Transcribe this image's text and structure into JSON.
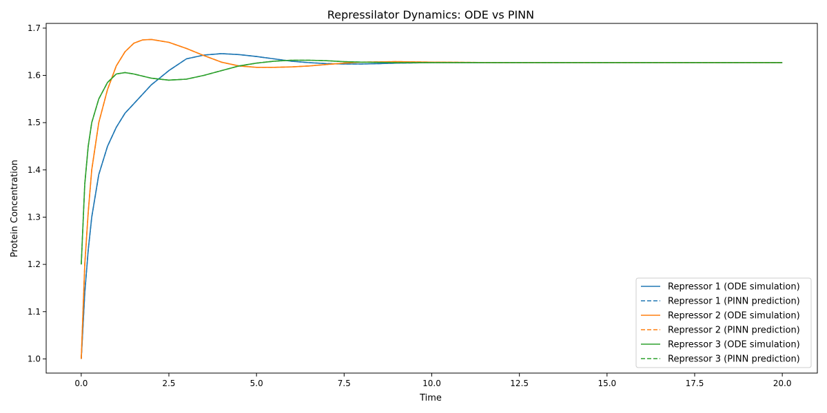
{
  "chart_data": {
    "type": "line",
    "title": "Repressilator Dynamics: ODE vs PINN",
    "xlabel": "Time",
    "ylabel": "Protein Concentration",
    "xlim": [
      -1.0,
      21.0
    ],
    "ylim": [
      0.97,
      1.71
    ],
    "xticks": [
      0.0,
      2.5,
      5.0,
      7.5,
      10.0,
      12.5,
      15.0,
      17.5,
      20.0
    ],
    "xtick_labels": [
      "0.0",
      "2.5",
      "5.0",
      "7.5",
      "10.0",
      "12.5",
      "15.0",
      "17.5",
      "20.0"
    ],
    "yticks": [
      1.0,
      1.1,
      1.2,
      1.3,
      1.4,
      1.5,
      1.6,
      1.7
    ],
    "ytick_labels": [
      "1.0",
      "1.1",
      "1.2",
      "1.3",
      "1.4",
      "1.5",
      "1.6",
      "1.7"
    ],
    "grid": false,
    "legend_position": "lower-right",
    "series": [
      {
        "name": "Repressor 1 (ODE simulation)",
        "color": "#1f77b4",
        "style": "solid",
        "x": [
          0,
          0.1,
          0.2,
          0.3,
          0.5,
          0.75,
          1.0,
          1.25,
          1.5,
          2.0,
          2.5,
          3.0,
          3.5,
          4.0,
          4.5,
          5.0,
          5.5,
          6.0,
          6.5,
          7.0,
          7.5,
          8.0,
          8.5,
          9.0,
          9.5,
          10.0,
          12.0,
          14.0,
          16.0,
          18.0,
          20.0
        ],
        "y": [
          1.0,
          1.14,
          1.23,
          1.3,
          1.39,
          1.45,
          1.49,
          1.52,
          1.54,
          1.58,
          1.61,
          1.635,
          1.643,
          1.646,
          1.644,
          1.64,
          1.635,
          1.63,
          1.627,
          1.625,
          1.624,
          1.624,
          1.625,
          1.626,
          1.6265,
          1.627,
          1.627,
          1.627,
          1.627,
          1.627,
          1.627
        ]
      },
      {
        "name": "Repressor 1 (PINN prediction)",
        "color": "#1f77b4",
        "style": "dashed",
        "x": [
          0,
          0.1,
          0.2,
          0.3,
          0.5,
          0.75,
          1.0,
          1.25,
          1.5,
          2.0,
          2.5,
          3.0,
          3.5,
          4.0,
          4.5,
          5.0,
          5.5,
          6.0,
          6.5,
          7.0,
          7.5,
          8.0,
          8.5,
          9.0,
          9.5,
          10.0,
          12.0,
          14.0,
          16.0,
          18.0,
          20.0
        ],
        "y": [
          1.0,
          1.14,
          1.23,
          1.3,
          1.39,
          1.45,
          1.49,
          1.52,
          1.54,
          1.58,
          1.61,
          1.635,
          1.643,
          1.646,
          1.644,
          1.64,
          1.635,
          1.63,
          1.627,
          1.625,
          1.624,
          1.624,
          1.625,
          1.626,
          1.6265,
          1.627,
          1.627,
          1.627,
          1.627,
          1.627,
          1.627
        ]
      },
      {
        "name": "Repressor 2 (ODE simulation)",
        "color": "#ff7f0e",
        "style": "solid",
        "x": [
          0,
          0.1,
          0.2,
          0.3,
          0.5,
          0.75,
          1.0,
          1.25,
          1.5,
          1.75,
          2.0,
          2.5,
          3.0,
          3.5,
          4.0,
          4.5,
          5.0,
          5.5,
          6.0,
          6.5,
          7.0,
          7.5,
          8.0,
          9.0,
          10.0,
          12.0,
          14.0,
          16.0,
          18.0,
          20.0
        ],
        "y": [
          1.0,
          1.2,
          1.31,
          1.4,
          1.5,
          1.57,
          1.62,
          1.65,
          1.668,
          1.675,
          1.676,
          1.67,
          1.657,
          1.642,
          1.628,
          1.62,
          1.617,
          1.617,
          1.618,
          1.62,
          1.623,
          1.626,
          1.628,
          1.629,
          1.628,
          1.627,
          1.627,
          1.627,
          1.627,
          1.627
        ]
      },
      {
        "name": "Repressor 2 (PINN prediction)",
        "color": "#ff7f0e",
        "style": "dashed",
        "x": [
          0,
          0.1,
          0.2,
          0.3,
          0.5,
          0.75,
          1.0,
          1.25,
          1.5,
          1.75,
          2.0,
          2.5,
          3.0,
          3.5,
          4.0,
          4.5,
          5.0,
          5.5,
          6.0,
          6.5,
          7.0,
          7.5,
          8.0,
          9.0,
          10.0,
          12.0,
          14.0,
          16.0,
          18.0,
          20.0
        ],
        "y": [
          1.0,
          1.2,
          1.31,
          1.4,
          1.5,
          1.57,
          1.62,
          1.65,
          1.668,
          1.675,
          1.676,
          1.67,
          1.657,
          1.642,
          1.628,
          1.62,
          1.617,
          1.617,
          1.618,
          1.62,
          1.623,
          1.626,
          1.628,
          1.629,
          1.628,
          1.627,
          1.627,
          1.627,
          1.627,
          1.627
        ]
      },
      {
        "name": "Repressor 3 (ODE simulation)",
        "color": "#2ca02c",
        "style": "solid",
        "x": [
          0,
          0.1,
          0.2,
          0.3,
          0.5,
          0.75,
          1.0,
          1.25,
          1.5,
          2.0,
          2.5,
          3.0,
          3.5,
          4.0,
          4.5,
          5.0,
          5.5,
          6.0,
          6.5,
          7.0,
          7.5,
          8.0,
          9.0,
          10.0,
          12.0,
          14.0,
          16.0,
          18.0,
          20.0
        ],
        "y": [
          1.2,
          1.37,
          1.45,
          1.5,
          1.55,
          1.585,
          1.603,
          1.606,
          1.603,
          1.594,
          1.59,
          1.592,
          1.6,
          1.61,
          1.62,
          1.626,
          1.63,
          1.632,
          1.632,
          1.631,
          1.629,
          1.628,
          1.627,
          1.627,
          1.627,
          1.627,
          1.627,
          1.627,
          1.627
        ]
      },
      {
        "name": "Repressor 3 (PINN prediction)",
        "color": "#2ca02c",
        "style": "dashed",
        "x": [
          0,
          0.1,
          0.2,
          0.3,
          0.5,
          0.75,
          1.0,
          1.25,
          1.5,
          2.0,
          2.5,
          3.0,
          3.5,
          4.0,
          4.5,
          5.0,
          5.5,
          6.0,
          6.5,
          7.0,
          7.5,
          8.0,
          9.0,
          10.0,
          12.0,
          14.0,
          16.0,
          18.0,
          20.0
        ],
        "y": [
          1.2,
          1.37,
          1.45,
          1.5,
          1.55,
          1.585,
          1.603,
          1.606,
          1.603,
          1.594,
          1.59,
          1.592,
          1.6,
          1.61,
          1.62,
          1.626,
          1.63,
          1.632,
          1.632,
          1.631,
          1.629,
          1.628,
          1.627,
          1.627,
          1.627,
          1.627,
          1.627,
          1.627,
          1.627
        ]
      }
    ]
  }
}
